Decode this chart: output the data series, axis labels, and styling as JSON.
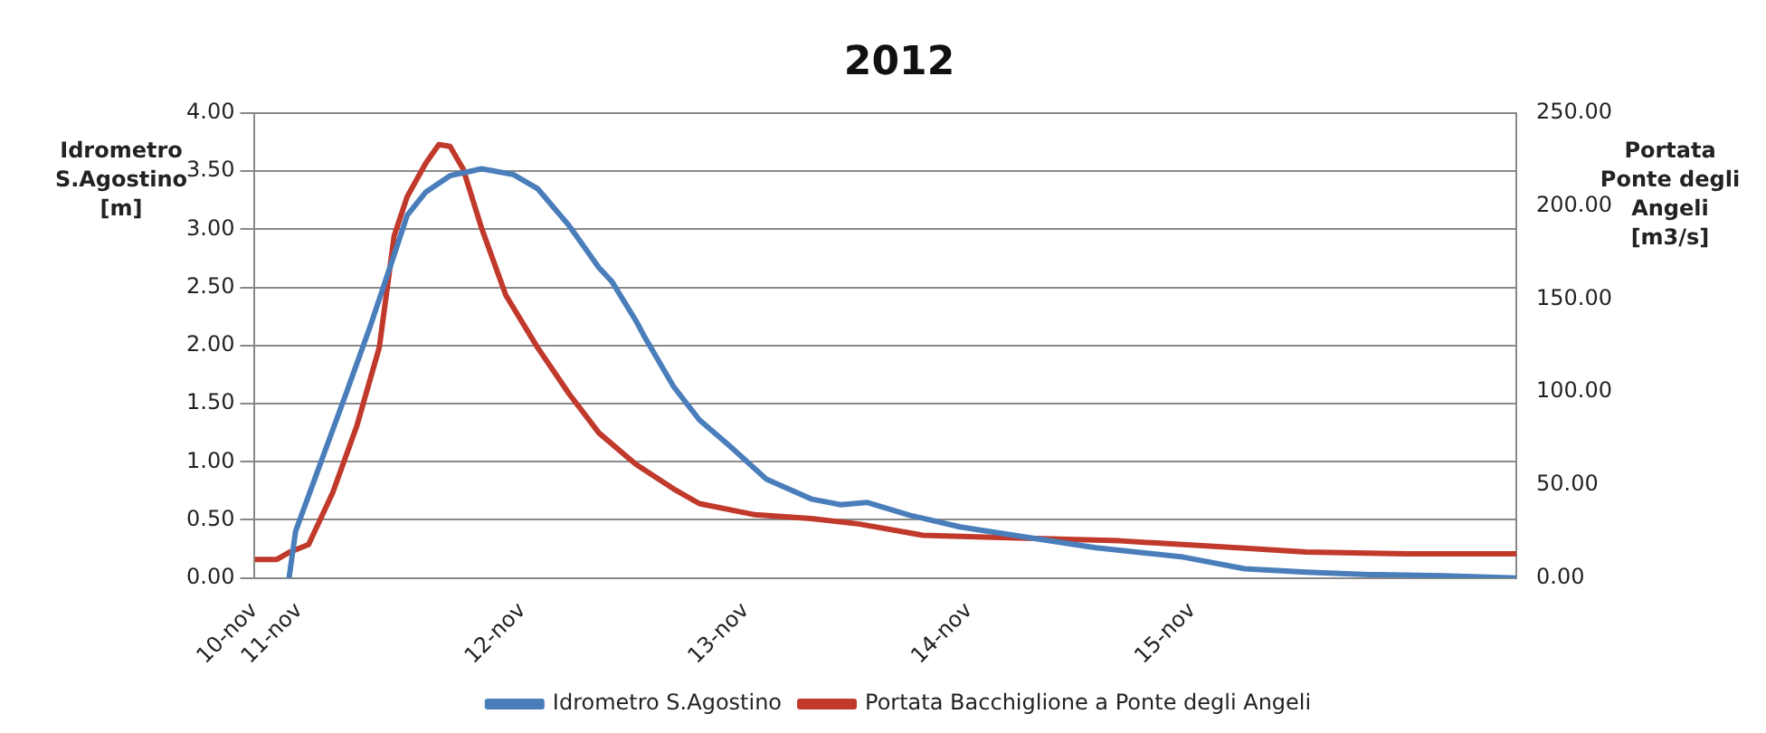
{
  "chart_data": {
    "type": "line",
    "title": "2012",
    "ylabel": "Idrometro S.Agostino [m]",
    "y2label": "Portata Ponte degli Angeli [m3/s]",
    "xlim": [
      "2012-11-10T19:12",
      "2012-11-16T10:48"
    ],
    "xticks": [
      {
        "value": "2012-11-10T19:12",
        "label": "10-nov"
      },
      {
        "value": "2012-11-11T00:00",
        "label": "11-nov"
      },
      {
        "value": "2012-11-12T00:00",
        "label": "12-nov"
      },
      {
        "value": "2012-11-13T00:00",
        "label": "13-nov"
      },
      {
        "value": "2012-11-14T00:00",
        "label": "14-nov"
      },
      {
        "value": "2012-11-15T00:00",
        "label": "15-nov"
      }
    ],
    "ylim": [
      0,
      4
    ],
    "yticks": [
      {
        "value": 0,
        "label": "0.00"
      },
      {
        "value": 0.5,
        "label": "0.50"
      },
      {
        "value": 1,
        "label": "1.00"
      },
      {
        "value": 1.5,
        "label": "1.50"
      },
      {
        "value": 2,
        "label": "2.00"
      },
      {
        "value": 2.5,
        "label": "2.50"
      },
      {
        "value": 3,
        "label": "3.00"
      },
      {
        "value": 3.5,
        "label": "3.50"
      },
      {
        "value": 4,
        "label": "4.00"
      }
    ],
    "y2lim": [
      0,
      250
    ],
    "y2ticks": [
      {
        "value": 0,
        "label": "0.00"
      },
      {
        "value": 50,
        "label": "50.00"
      },
      {
        "value": 100,
        "label": "100.00"
      },
      {
        "value": 150,
        "label": "150.00"
      },
      {
        "value": 200,
        "label": "200.00"
      },
      {
        "value": 250,
        "label": "250.00"
      }
    ],
    "grid": "y",
    "legend": "bottom",
    "marker": "none",
    "line_style": "solid",
    "series": [
      {
        "name": "Idrometro S.Agostino",
        "color": "#4a7ebb",
        "x": [
          "2012-11-10T22:54",
          "2012-11-10T23:36",
          "2012-11-11T02:12",
          "2012-11-11T05:00",
          "2012-11-11T07:36",
          "2012-11-11T10:12",
          "2012-11-11T11:36",
          "2012-11-11T13:36",
          "2012-11-11T16:12",
          "2012-11-11T19:36",
          "2012-11-11T23:00",
          "2012-11-12T01:36",
          "2012-11-12T05:00",
          "2012-11-12T08:12",
          "2012-11-12T09:36",
          "2012-11-12T12:12",
          "2012-11-12T13:00",
          "2012-11-12T16:12",
          "2012-11-12T19:00",
          "2012-11-12T22:12",
          "2012-11-13T02:12",
          "2012-11-13T07:00",
          "2012-11-13T10:12",
          "2012-11-13T13:00",
          "2012-11-13T17:36",
          "2012-11-13T23:00",
          "2012-11-14T07:00",
          "2012-11-14T13:36",
          "2012-11-14T23:00",
          "2012-11-15T05:36",
          "2012-11-15T12:12",
          "2012-11-15T19:00",
          "2012-11-16T03:00",
          "2012-11-16T10:48"
        ],
        "values": [
          0,
          0.4,
          0.97,
          1.58,
          2.16,
          2.78,
          3.12,
          3.32,
          3.46,
          3.52,
          3.47,
          3.35,
          3.03,
          2.67,
          2.55,
          2.21,
          2.09,
          1.65,
          1.36,
          1.14,
          0.85,
          0.68,
          0.63,
          0.65,
          0.54,
          0.44,
          0.34,
          0.26,
          0.18,
          0.08,
          0.05,
          0.03,
          0.02,
          0
        ]
      },
      {
        "name": "Portata Bacchiglione a Ponte degli Angeli",
        "color": "#c0392b",
        "axis": "y2",
        "x": [
          "2012-11-10T19:12",
          "2012-11-10T21:36",
          "2012-11-10T23:00",
          "2012-11-11T01:00",
          "2012-11-11T03:36",
          "2012-11-11T06:12",
          "2012-11-11T08:36",
          "2012-11-11T10:12",
          "2012-11-11T11:36",
          "2012-11-11T13:36",
          "2012-11-11T15:00",
          "2012-11-11T16:12",
          "2012-11-11T17:36",
          "2012-11-11T19:36",
          "2012-11-11T22:12",
          "2012-11-12T01:36",
          "2012-11-12T05:00",
          "2012-11-12T08:12",
          "2012-11-12T12:12",
          "2012-11-12T16:12",
          "2012-11-12T19:00",
          "2012-11-13T01:00",
          "2012-11-13T07:00",
          "2012-11-13T12:12",
          "2012-11-13T19:00",
          "2012-11-14T01:36",
          "2012-11-14T16:12",
          "2012-11-15T05:36",
          "2012-11-15T12:12",
          "2012-11-15T23:00",
          "2012-11-16T10:48"
        ],
        "values": [
          10,
          10,
          14,
          18,
          46,
          82,
          124,
          184,
          205,
          223,
          233,
          232,
          220,
          188,
          152,
          124,
          99,
          78,
          61,
          48,
          40,
          34,
          32,
          29,
          23,
          22,
          20,
          16,
          14,
          13,
          13
        ]
      }
    ]
  }
}
